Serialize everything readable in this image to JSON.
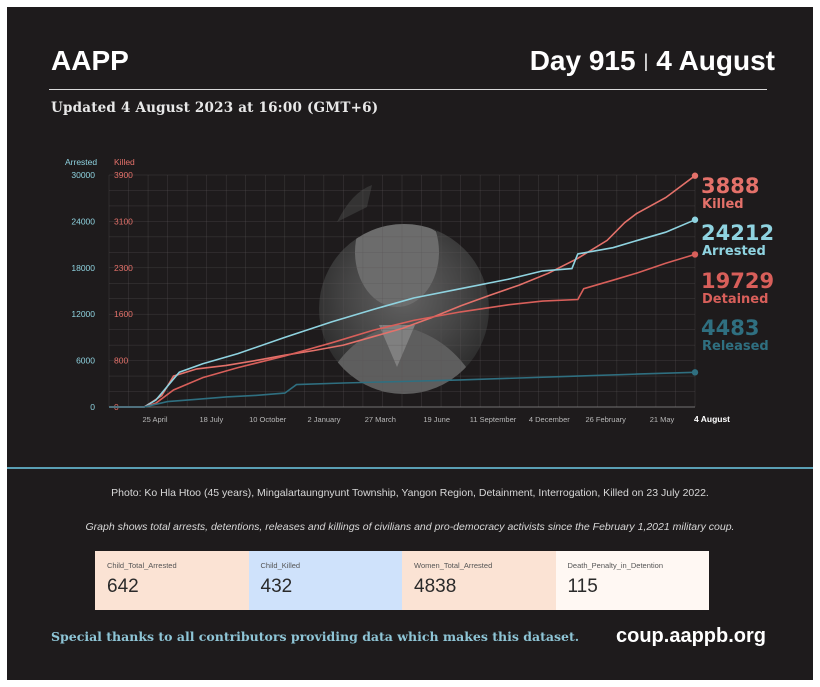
{
  "header": {
    "brand": "AAPP",
    "day": "Day 915",
    "separator": "|",
    "date": "4 August",
    "updated": "Updated 4 August 2023 at 16:00 (GMT+6)"
  },
  "colors": {
    "background": "#1e1b1c",
    "killed": "#e4716a",
    "detained": "#d85f5a",
    "arrested": "#8fd3e0",
    "released": "#2f6f80",
    "accent_rule": "#5a9fb4"
  },
  "chart_data": {
    "type": "line",
    "axes": {
      "left_axis_label": "Arrested",
      "right_axis_label": "Killed",
      "arrested_ticks": [
        "30000",
        "24000",
        "18000",
        "12000",
        "6000",
        "0"
      ],
      "killed_ticks": [
        "3900",
        "3100",
        "2300",
        "1600",
        "800",
        "0"
      ],
      "arrested_ylim": [
        0,
        30000
      ],
      "killed_ylim": [
        0,
        3900
      ],
      "x_ticks": [
        "25 April",
        "18 July",
        "10 October",
        "2 January",
        "27 March",
        "19 June",
        "11 September",
        "4 December",
        "26 February",
        "21 May",
        "4 August"
      ],
      "grid": true
    },
    "series": [
      {
        "name": "Killed",
        "axis": "killed",
        "color": "#e4716a",
        "final_value": 3888,
        "points": [
          [
            0,
            0
          ],
          [
            0.06,
            0
          ],
          [
            0.09,
            190
          ],
          [
            0.11,
            520
          ],
          [
            0.15,
            640
          ],
          [
            0.2,
            700
          ],
          [
            0.25,
            780
          ],
          [
            0.3,
            870
          ],
          [
            0.35,
            950
          ],
          [
            0.4,
            1040
          ],
          [
            0.45,
            1180
          ],
          [
            0.5,
            1320
          ],
          [
            0.55,
            1500
          ],
          [
            0.6,
            1700
          ],
          [
            0.65,
            1880
          ],
          [
            0.7,
            2050
          ],
          [
            0.75,
            2250
          ],
          [
            0.8,
            2500
          ],
          [
            0.85,
            2800
          ],
          [
            0.88,
            3100
          ],
          [
            0.9,
            3250
          ],
          [
            0.95,
            3520
          ],
          [
            1,
            3888
          ]
        ]
      },
      {
        "name": "Arrested",
        "axis": "arrested",
        "color": "#8fd3e0",
        "final_value": 24212,
        "points": [
          [
            0,
            0
          ],
          [
            0.06,
            0
          ],
          [
            0.08,
            900
          ],
          [
            0.12,
            4500
          ],
          [
            0.16,
            5600
          ],
          [
            0.22,
            6900
          ],
          [
            0.3,
            9000
          ],
          [
            0.38,
            11000
          ],
          [
            0.45,
            12600
          ],
          [
            0.52,
            14100
          ],
          [
            0.6,
            15300
          ],
          [
            0.68,
            16500
          ],
          [
            0.74,
            17600
          ],
          [
            0.79,
            17900
          ],
          [
            0.8,
            19800
          ],
          [
            0.86,
            20600
          ],
          [
            0.9,
            21500
          ],
          [
            0.95,
            22600
          ],
          [
            1,
            24212
          ]
        ]
      },
      {
        "name": "Detained",
        "axis": "arrested",
        "color": "#d85f5a",
        "final_value": 19729,
        "points": [
          [
            0,
            0
          ],
          [
            0.06,
            0
          ],
          [
            0.08,
            500
          ],
          [
            0.11,
            2200
          ],
          [
            0.16,
            3800
          ],
          [
            0.22,
            5100
          ],
          [
            0.3,
            6600
          ],
          [
            0.38,
            8300
          ],
          [
            0.45,
            9900
          ],
          [
            0.52,
            11200
          ],
          [
            0.6,
            12300
          ],
          [
            0.68,
            13200
          ],
          [
            0.74,
            13700
          ],
          [
            0.8,
            13900
          ],
          [
            0.81,
            15300
          ],
          [
            0.86,
            16400
          ],
          [
            0.9,
            17300
          ],
          [
            0.95,
            18600
          ],
          [
            1,
            19729
          ]
        ]
      },
      {
        "name": "Released",
        "axis": "arrested",
        "color": "#2f6f80",
        "final_value": 4483,
        "points": [
          [
            0,
            0
          ],
          [
            0.06,
            0
          ],
          [
            0.1,
            700
          ],
          [
            0.15,
            1000
          ],
          [
            0.2,
            1300
          ],
          [
            0.25,
            1500
          ],
          [
            0.3,
            1800
          ],
          [
            0.32,
            2900
          ],
          [
            0.4,
            3100
          ],
          [
            0.5,
            3300
          ],
          [
            0.6,
            3500
          ],
          [
            0.7,
            3750
          ],
          [
            0.8,
            4000
          ],
          [
            0.9,
            4250
          ],
          [
            1,
            4483
          ]
        ]
      }
    ],
    "value_labels": [
      {
        "value": "3888",
        "label": "Killed",
        "color": "#e4716a"
      },
      {
        "value": "24212",
        "label": "Arrested",
        "color": "#8fd3e0"
      },
      {
        "value": "19729",
        "label": "Detained",
        "color": "#d85f5a"
      },
      {
        "value": "4483",
        "label": "Released",
        "color": "#2f6f80"
      }
    ]
  },
  "captions": {
    "photo": "Photo: Ko Hla Htoo (45 years), Mingalartaungnyunt Township, Yangon Region, Detainment, Interrogation, Killed on 23 July 2022.",
    "graph_note": "Graph shows total arrests, detentions, releases and killings of civilians and pro-democracy activists since the February 1,2021 military coup."
  },
  "stats": [
    {
      "label": "Child_Total_Arrested",
      "value": "642"
    },
    {
      "label": "Child_Killed",
      "value": "432"
    },
    {
      "label": "Women_Total_Arrested",
      "value": "4838"
    },
    {
      "label": "Death_Penalty_in_Detention",
      "value": "115"
    }
  ],
  "footer": {
    "thanks": "Special thanks to all contributors providing data which makes this dataset.",
    "website": "coup.aappb.org"
  }
}
